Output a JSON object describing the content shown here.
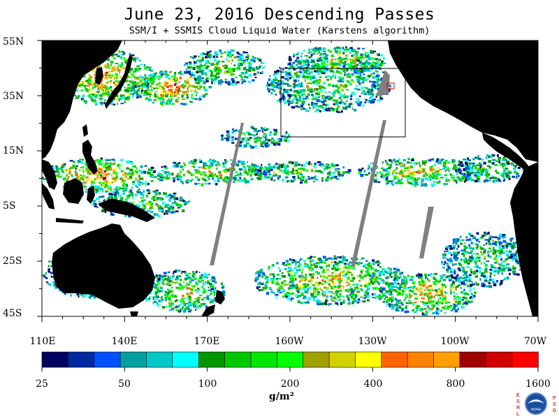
{
  "header": {
    "title": "June 23, 2016  Descending Passes",
    "subtitle": "SSM/I + SSMIS Cloud Liquid Water (Karstens algorithm)"
  },
  "map": {
    "lat_labels": [
      "55N",
      "35N",
      "15N",
      "5S",
      "25S",
      "45S"
    ],
    "lon_labels": [
      "110E",
      "140E",
      "170E",
      "160W",
      "130W",
      "100W",
      "70W"
    ],
    "land_color": "#000000",
    "missing_data_color": "#808080",
    "no_cloud_color": "#ffffff"
  },
  "colorbar": {
    "tick_labels": [
      "25",
      "50",
      "100",
      "200",
      "400",
      "800",
      "1600"
    ],
    "unit": "g/m²",
    "colors": [
      "#00005f",
      "#0028a0",
      "#0050ff",
      "#00a0a0",
      "#00c8c8",
      "#00ffff",
      "#009600",
      "#00c800",
      "#00e600",
      "#00ff00",
      "#a0a000",
      "#d2d200",
      "#ffff00",
      "#ff6400",
      "#ff8200",
      "#ffa000",
      "#a00000",
      "#d20000",
      "#ff0000"
    ]
  },
  "logo": {
    "left_letters": "ESRL",
    "right_letters": "PSD",
    "emblem_text": "NOAA"
  }
}
